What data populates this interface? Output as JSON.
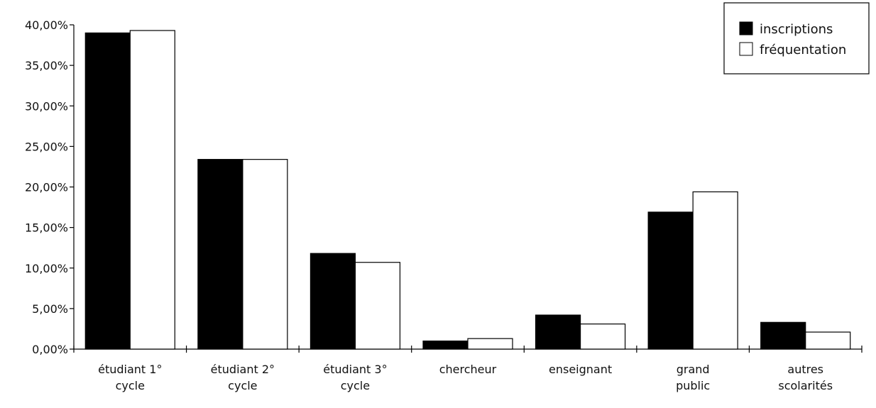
{
  "chart_data": {
    "type": "bar",
    "categories": [
      [
        "étudiant 1°",
        "cycle"
      ],
      [
        "étudiant 2°",
        "cycle"
      ],
      [
        "étudiant 3°",
        "cycle"
      ],
      [
        "chercheur"
      ],
      [
        "enseignant"
      ],
      [
        "grand",
        "public"
      ],
      [
        "autres",
        "scolarités"
      ]
    ],
    "series": [
      {
        "name": "inscriptions",
        "color": "#000000",
        "values": [
          39.0,
          23.4,
          11.8,
          1.0,
          4.2,
          16.9,
          3.3
        ]
      },
      {
        "name": "fréquentation",
        "color": "#ffffff",
        "values": [
          39.3,
          23.4,
          10.7,
          1.3,
          3.1,
          19.4,
          2.1
        ]
      }
    ],
    "yticks": [
      "0,00%",
      "5,00%",
      "10,00%",
      "15,00%",
      "20,00%",
      "25,00%",
      "30,00%",
      "35,00%",
      "40,00%"
    ],
    "ylim": [
      0,
      40
    ],
    "legend_position": "top-right",
    "grid": false
  }
}
